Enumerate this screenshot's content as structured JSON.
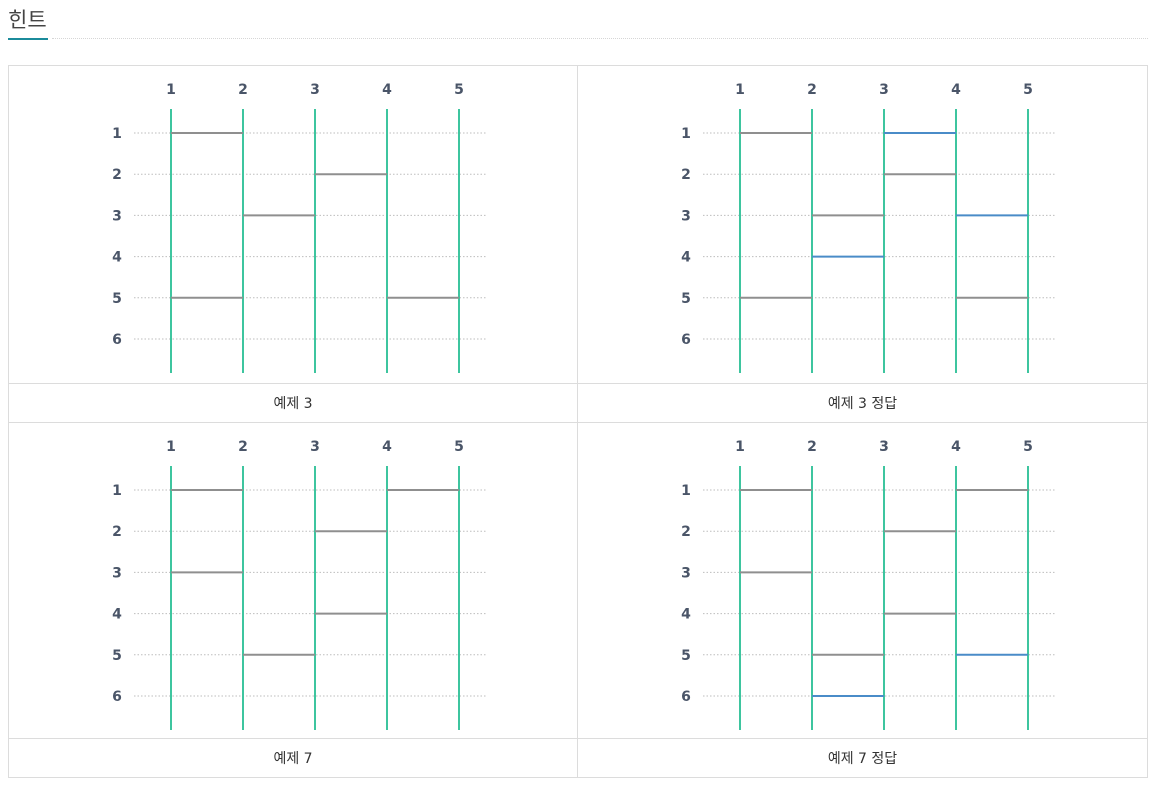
{
  "hint": {
    "title": "힌트"
  },
  "colors": {
    "vertical": "#3ec59f",
    "rung": "#8f8f8f",
    "highlight": "#4a8cc8",
    "accent": "#1b8b9b"
  },
  "diagrams": [
    {
      "caption": "예제 3",
      "columns": [
        "1",
        "2",
        "3",
        "4",
        "5"
      ],
      "rows": [
        "1",
        "2",
        "3",
        "4",
        "5",
        "6"
      ],
      "rungs": [
        {
          "row": 1,
          "col": 1,
          "hl": false
        },
        {
          "row": 2,
          "col": 3,
          "hl": false
        },
        {
          "row": 3,
          "col": 2,
          "hl": false
        },
        {
          "row": 5,
          "col": 1,
          "hl": false
        },
        {
          "row": 5,
          "col": 4,
          "hl": false
        }
      ]
    },
    {
      "caption": "예제 3 정답",
      "columns": [
        "1",
        "2",
        "3",
        "4",
        "5"
      ],
      "rows": [
        "1",
        "2",
        "3",
        "4",
        "5",
        "6"
      ],
      "rungs": [
        {
          "row": 1,
          "col": 1,
          "hl": false
        },
        {
          "row": 1,
          "col": 3,
          "hl": true
        },
        {
          "row": 2,
          "col": 3,
          "hl": false
        },
        {
          "row": 3,
          "col": 2,
          "hl": false
        },
        {
          "row": 3,
          "col": 4,
          "hl": true
        },
        {
          "row": 4,
          "col": 2,
          "hl": true
        },
        {
          "row": 5,
          "col": 1,
          "hl": false
        },
        {
          "row": 5,
          "col": 4,
          "hl": false
        }
      ]
    },
    {
      "caption": "예제 7",
      "columns": [
        "1",
        "2",
        "3",
        "4",
        "5"
      ],
      "rows": [
        "1",
        "2",
        "3",
        "4",
        "5",
        "6"
      ],
      "rungs": [
        {
          "row": 1,
          "col": 1,
          "hl": false
        },
        {
          "row": 1,
          "col": 4,
          "hl": false
        },
        {
          "row": 2,
          "col": 3,
          "hl": false
        },
        {
          "row": 3,
          "col": 1,
          "hl": false
        },
        {
          "row": 4,
          "col": 3,
          "hl": false
        },
        {
          "row": 5,
          "col": 2,
          "hl": false
        }
      ]
    },
    {
      "caption": "예제 7 정답",
      "columns": [
        "1",
        "2",
        "3",
        "4",
        "5"
      ],
      "rows": [
        "1",
        "2",
        "3",
        "4",
        "5",
        "6"
      ],
      "rungs": [
        {
          "row": 1,
          "col": 1,
          "hl": false
        },
        {
          "row": 1,
          "col": 4,
          "hl": false
        },
        {
          "row": 2,
          "col": 3,
          "hl": false
        },
        {
          "row": 3,
          "col": 1,
          "hl": false
        },
        {
          "row": 4,
          "col": 3,
          "hl": false
        },
        {
          "row": 5,
          "col": 2,
          "hl": false
        },
        {
          "row": 5,
          "col": 4,
          "hl": true
        },
        {
          "row": 6,
          "col": 2,
          "hl": true
        }
      ]
    }
  ]
}
